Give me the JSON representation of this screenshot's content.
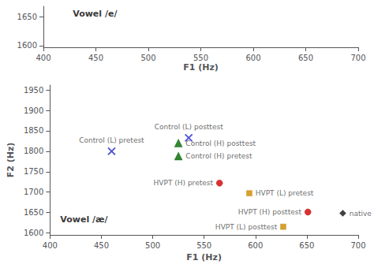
{
  "chart_data": [
    {
      "type": "scatter",
      "xlabel": "F1 (Hz)",
      "xlim": [
        400,
        700
      ],
      "ylim": [
        1597,
        1668
      ],
      "xticks": [
        400,
        450,
        500,
        550,
        600,
        650,
        700
      ],
      "yticks": [
        1600,
        1650
      ],
      "grid": false,
      "annotations": [
        {
          "text": "Vowel /e/",
          "x": 428,
          "y": 1662
        }
      ]
    },
    {
      "type": "scatter",
      "xlabel": "F1 (Hz)",
      "ylabel": "F2 (Hz)",
      "xlim": [
        400,
        700
      ],
      "ylim": [
        1595,
        1962
      ],
      "xticks": [
        400,
        450,
        500,
        550,
        600,
        650,
        700
      ],
      "yticks": [
        1600,
        1650,
        1700,
        1750,
        1800,
        1850,
        1900,
        1950
      ],
      "grid": false,
      "annotations": [
        {
          "text": "Vowel /æ/",
          "x": 410,
          "y": 1643
        }
      ],
      "series": [
        {
          "color": "#2222cc",
          "marker": "x",
          "x": [
            535
          ],
          "values": [
            1833
          ],
          "labels": [
            "Control (L) posttest"
          ]
        },
        {
          "color": "#006600",
          "marker": "triangle",
          "x": [
            525
          ],
          "values": [
            1820
          ],
          "labels": [
            "Control (H) posttest"
          ]
        },
        {
          "color": "#2222cc",
          "marker": "x",
          "x": [
            460
          ],
          "values": [
            1800
          ],
          "labels": [
            "Control (L) pretest"
          ]
        },
        {
          "color": "#006600",
          "marker": "triangle",
          "x": [
            525
          ],
          "values": [
            1788
          ],
          "labels": [
            "Control (H) pretest"
          ]
        },
        {
          "color": "#cc0000",
          "marker": "circle",
          "x": [
            565
          ],
          "values": [
            1722
          ],
          "labels": [
            "HVPT (H) pretest"
          ]
        },
        {
          "color": "#cc8800",
          "marker": "square",
          "x": [
            594
          ],
          "values": [
            1697
          ],
          "labels": [
            "HVPT (L) pretest"
          ]
        },
        {
          "color": "#cc0000",
          "marker": "circle",
          "x": [
            651
          ],
          "values": [
            1651
          ],
          "labels": [
            "HVPT (H) posttest"
          ]
        },
        {
          "color": "#cc8800",
          "marker": "square",
          "x": [
            627
          ],
          "values": [
            1615
          ],
          "labels": [
            "HVPT (L) posttest"
          ]
        },
        {
          "color": "#111111",
          "marker": "diamond",
          "x": [
            685
          ],
          "values": [
            1648
          ],
          "labels": [
            "native"
          ]
        }
      ]
    }
  ]
}
